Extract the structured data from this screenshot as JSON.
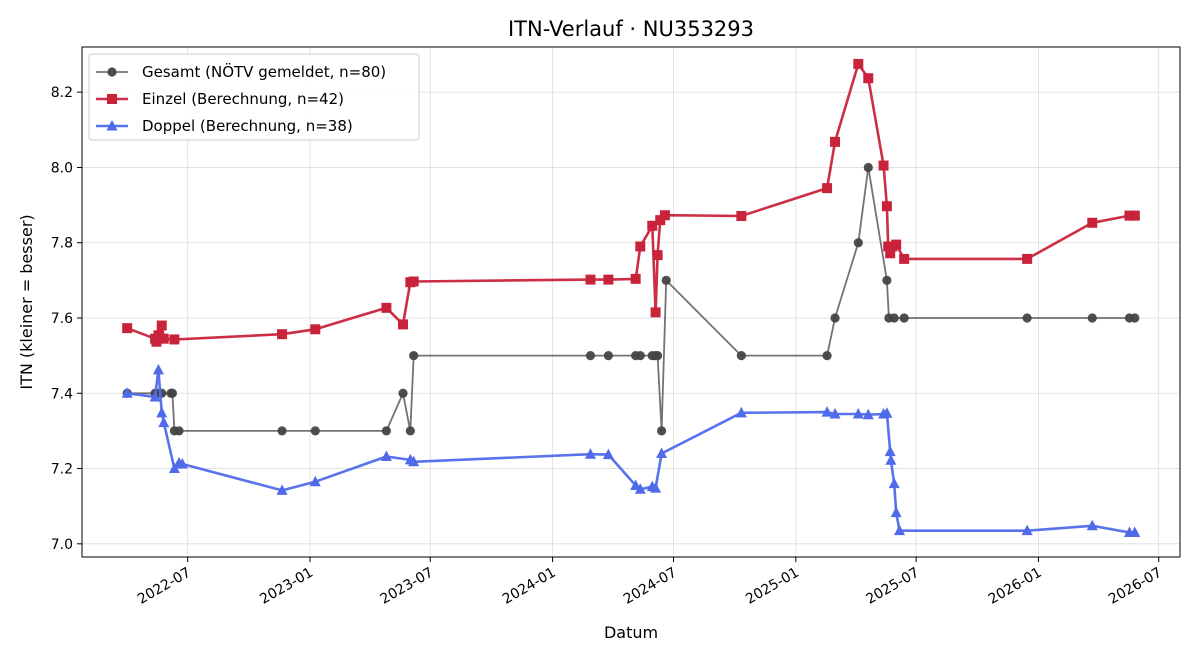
{
  "chart_data": {
    "type": "line",
    "title": "ITN-Verlauf · NU353293",
    "xlabel": "Datum",
    "ylabel": "ITN  (kleiner = besser)",
    "x_axis": "date",
    "xlim": [
      "2022-01-23",
      "2026-08-02"
    ],
    "ylim": [
      6.965,
      8.32
    ],
    "x_ticks": [
      "2022-07",
      "2023-01",
      "2023-07",
      "2024-01",
      "2024-07",
      "2025-01",
      "2025-07",
      "2026-01",
      "2026-07"
    ],
    "y_ticks": [
      "7.0",
      "7.2",
      "7.4",
      "7.6",
      "7.8",
      "8.0",
      "8.2"
    ],
    "grid": true,
    "legend_position": "top-left",
    "series": [
      {
        "name": "Gesamt (NÖTV gemeldet, n=80)",
        "color": "#444444",
        "marker": "circle",
        "points": [
          [
            "2022-04-01",
            7.4
          ],
          [
            "2022-05-13",
            7.4
          ],
          [
            "2022-05-18",
            7.4
          ],
          [
            "2022-05-23",
            7.4
          ],
          [
            "2022-06-06",
            7.4
          ],
          [
            "2022-06-08",
            7.4
          ],
          [
            "2022-06-11",
            7.3
          ],
          [
            "2022-06-18",
            7.3
          ],
          [
            "2022-11-20",
            7.3
          ],
          [
            "2023-01-09",
            7.3
          ],
          [
            "2023-04-26",
            7.3
          ],
          [
            "2023-05-21",
            7.4
          ],
          [
            "2023-06-01",
            7.3
          ],
          [
            "2023-06-06",
            7.5
          ],
          [
            "2024-02-27",
            7.5
          ],
          [
            "2024-03-25",
            7.5
          ],
          [
            "2024-05-05",
            7.5
          ],
          [
            "2024-05-12",
            7.5
          ],
          [
            "2024-05-30",
            7.5
          ],
          [
            "2024-06-04",
            7.5
          ],
          [
            "2024-06-07",
            7.5
          ],
          [
            "2024-06-13",
            7.3
          ],
          [
            "2024-06-20",
            7.7
          ],
          [
            "2024-10-11",
            7.5
          ],
          [
            "2025-02-17",
            7.5
          ],
          [
            "2025-03-01",
            7.6
          ],
          [
            "2025-04-05",
            7.8
          ],
          [
            "2025-04-20",
            8.0
          ],
          [
            "2025-05-18",
            7.7
          ],
          [
            "2025-05-21",
            7.6
          ],
          [
            "2025-05-29",
            7.6
          ],
          [
            "2025-06-13",
            7.6
          ],
          [
            "2025-12-15",
            7.6
          ],
          [
            "2026-03-23",
            7.6
          ],
          [
            "2026-05-18",
            7.6
          ],
          [
            "2026-05-26",
            7.6
          ]
        ]
      },
      {
        "name": "Einzel (Berechnung, n=42)",
        "color": "#c9233c",
        "marker": "square",
        "points": [
          [
            "2022-04-01",
            7.573
          ],
          [
            "2022-05-13",
            7.545
          ],
          [
            "2022-05-15",
            7.537
          ],
          [
            "2022-05-18",
            7.554
          ],
          [
            "2022-05-23",
            7.58
          ],
          [
            "2022-05-26",
            7.545
          ],
          [
            "2022-06-11",
            7.543
          ],
          [
            "2022-11-20",
            7.557
          ],
          [
            "2023-01-09",
            7.57
          ],
          [
            "2023-04-26",
            7.627
          ],
          [
            "2023-05-21",
            7.583
          ],
          [
            "2023-06-01",
            7.695
          ],
          [
            "2023-06-06",
            7.697
          ],
          [
            "2024-02-27",
            7.702
          ],
          [
            "2024-03-25",
            7.702
          ],
          [
            "2024-05-05",
            7.704
          ],
          [
            "2024-05-12",
            7.79
          ],
          [
            "2024-05-30",
            7.845
          ],
          [
            "2024-06-04",
            7.615
          ],
          [
            "2024-06-07",
            7.767
          ],
          [
            "2024-06-11",
            7.86
          ],
          [
            "2024-06-18",
            7.873
          ],
          [
            "2024-10-11",
            7.871
          ],
          [
            "2025-02-17",
            7.945
          ],
          [
            "2025-03-01",
            8.068
          ],
          [
            "2025-04-05",
            8.275
          ],
          [
            "2025-04-20",
            8.237
          ],
          [
            "2025-05-13",
            8.005
          ],
          [
            "2025-05-18",
            7.897
          ],
          [
            "2025-05-20",
            7.79
          ],
          [
            "2025-05-23",
            7.772
          ],
          [
            "2025-05-26",
            7.79
          ],
          [
            "2025-06-01",
            7.795
          ],
          [
            "2025-06-13",
            7.757
          ],
          [
            "2025-12-15",
            7.757
          ],
          [
            "2026-03-23",
            7.853
          ],
          [
            "2026-05-18",
            7.872
          ],
          [
            "2026-05-26",
            7.872
          ]
        ]
      },
      {
        "name": "Doppel (Berechnung, n=38)",
        "color": "#4f6bea",
        "marker": "triangle",
        "points": [
          [
            "2022-04-01",
            7.4
          ],
          [
            "2022-05-13",
            7.39
          ],
          [
            "2022-05-18",
            7.462
          ],
          [
            "2022-05-23",
            7.348
          ],
          [
            "2022-05-26",
            7.322
          ],
          [
            "2022-06-11",
            7.2
          ],
          [
            "2022-06-18",
            7.215
          ],
          [
            "2022-06-23",
            7.212
          ],
          [
            "2022-11-20",
            7.142
          ],
          [
            "2023-01-09",
            7.165
          ],
          [
            "2023-04-26",
            7.232
          ],
          [
            "2023-06-01",
            7.223
          ],
          [
            "2023-06-06",
            7.218
          ],
          [
            "2024-02-27",
            7.238
          ],
          [
            "2024-03-25",
            7.237
          ],
          [
            "2024-05-05",
            7.155
          ],
          [
            "2024-05-12",
            7.145
          ],
          [
            "2024-05-30",
            7.152
          ],
          [
            "2024-06-04",
            7.148
          ],
          [
            "2024-06-13",
            7.24
          ],
          [
            "2024-10-11",
            7.348
          ],
          [
            "2025-02-17",
            7.35
          ],
          [
            "2025-03-01",
            7.345
          ],
          [
            "2025-04-05",
            7.345
          ],
          [
            "2025-04-20",
            7.343
          ],
          [
            "2025-05-13",
            7.345
          ],
          [
            "2025-05-18",
            7.347
          ],
          [
            "2025-05-23",
            7.245
          ],
          [
            "2025-05-24",
            7.222
          ],
          [
            "2025-05-29",
            7.16
          ],
          [
            "2025-06-01",
            7.083
          ],
          [
            "2025-06-06",
            7.035
          ],
          [
            "2025-12-15",
            7.035
          ],
          [
            "2026-03-23",
            7.048
          ],
          [
            "2026-05-18",
            7.03
          ],
          [
            "2026-05-26",
            7.03
          ]
        ]
      }
    ]
  }
}
